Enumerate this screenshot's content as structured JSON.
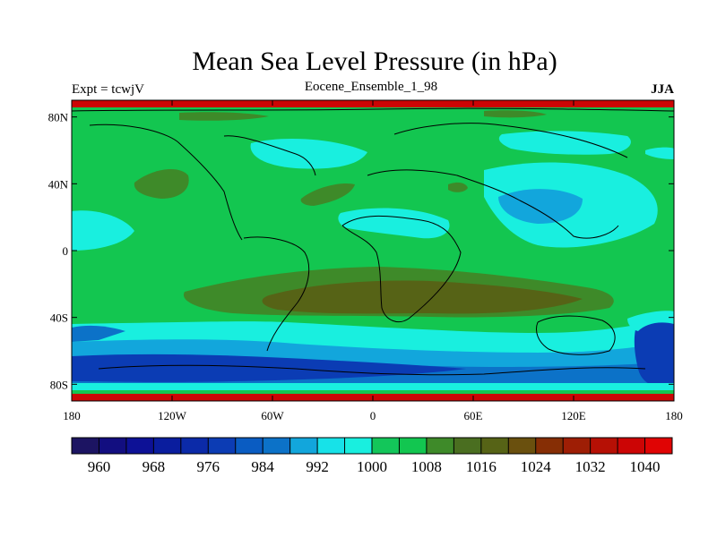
{
  "title": "Mean Sea Level Pressure (in hPa)",
  "left_header": "Expt = tcwjV",
  "center_header": "Eocene_Ensemble_1_98",
  "right_header": "JJA",
  "lat_ticks": [
    {
      "label": "80N",
      "value": 80
    },
    {
      "label": "40N",
      "value": 40
    },
    {
      "label": "0",
      "value": 0
    },
    {
      "label": "40S",
      "value": -40
    },
    {
      "label": "80S",
      "value": -80
    }
  ],
  "lon_ticks": [
    {
      "label": "180",
      "value": -180
    },
    {
      "label": "120W",
      "value": -120
    },
    {
      "label": "60W",
      "value": -60
    },
    {
      "label": "0",
      "value": 0
    },
    {
      "label": "60E",
      "value": 60
    },
    {
      "label": "120E",
      "value": 120
    },
    {
      "label": "180",
      "value": 180
    }
  ],
  "colorbar": {
    "colors": [
      "#1c1462",
      "#120e80",
      "#0d1196",
      "#0a1d9e",
      "#0b2aa8",
      "#0c3cb4",
      "#0a5cc2",
      "#0c72c8",
      "#12a6dc",
      "#17e2e8",
      "#19efdf",
      "#13c65a",
      "#12c650",
      "#3e8a29",
      "#4a6e20",
      "#566316",
      "#6a500e",
      "#862e05",
      "#9e1e05",
      "#b61005",
      "#cc0505",
      "#e00404"
    ],
    "labels": [
      {
        "text": "960",
        "boundary": 1
      },
      {
        "text": "968",
        "boundary": 3
      },
      {
        "text": "976",
        "boundary": 5
      },
      {
        "text": "984",
        "boundary": 7
      },
      {
        "text": "992",
        "boundary": 9
      },
      {
        "text": "1000",
        "boundary": 11
      },
      {
        "text": "1008",
        "boundary": 13
      },
      {
        "text": "1016",
        "boundary": 15
      },
      {
        "text": "1024",
        "boundary": 17
      },
      {
        "text": "1032",
        "boundary": 19
      },
      {
        "text": "1040",
        "boundary": 21
      }
    ]
  },
  "field_colors": {
    "c976": "#0b3cb4",
    "c984": "#0c72c8",
    "c992": "#12a6dc",
    "c996": "#19efdf",
    "c1004": "#13c650",
    "c1012": "#3e8a29",
    "c1016": "#566316",
    "c1036": "#cc0505"
  }
}
